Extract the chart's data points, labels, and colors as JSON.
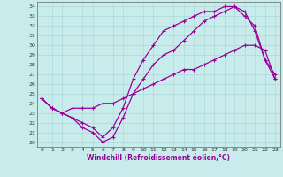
{
  "xlabel": "Windchill (Refroidissement éolien,°C)",
  "bg_color": "#c8ecec",
  "line_color": "#990099",
  "grid_color": "#aacccc",
  "xlim": [
    -0.5,
    23.5
  ],
  "ylim": [
    19.5,
    34.5
  ],
  "xticks": [
    0,
    1,
    2,
    3,
    4,
    5,
    6,
    7,
    8,
    9,
    10,
    11,
    12,
    13,
    14,
    15,
    16,
    17,
    18,
    19,
    20,
    21,
    22,
    23
  ],
  "yticks": [
    20,
    21,
    22,
    23,
    24,
    25,
    26,
    27,
    28,
    29,
    30,
    31,
    32,
    33,
    34
  ],
  "curve1_x": [
    0,
    1,
    2,
    3,
    4,
    5,
    6,
    7,
    8,
    9,
    10,
    11,
    12,
    13,
    14,
    15,
    16,
    17,
    18,
    19,
    20,
    21,
    22,
    23
  ],
  "curve1_y": [
    24.5,
    23.5,
    23.0,
    22.5,
    21.5,
    21.0,
    20.0,
    20.5,
    22.5,
    25.0,
    26.5,
    28.0,
    29.0,
    29.5,
    30.5,
    31.5,
    32.5,
    33.0,
    33.5,
    34.0,
    33.0,
    32.0,
    28.5,
    27.0
  ],
  "curve2_x": [
    0,
    1,
    2,
    3,
    4,
    5,
    6,
    7,
    8,
    9,
    10,
    11,
    12,
    13,
    14,
    15,
    16,
    17,
    18,
    19,
    20,
    21,
    22,
    23
  ],
  "curve2_y": [
    24.5,
    23.5,
    23.0,
    22.5,
    22.0,
    21.5,
    20.5,
    21.5,
    23.5,
    26.5,
    28.5,
    30.0,
    31.5,
    32.0,
    32.5,
    33.0,
    33.5,
    33.5,
    34.0,
    34.0,
    33.5,
    31.5,
    28.5,
    26.5
  ],
  "curve3_x": [
    0,
    1,
    2,
    3,
    4,
    5,
    6,
    7,
    8,
    9,
    10,
    11,
    12,
    13,
    14,
    15,
    16,
    17,
    18,
    19,
    20,
    21,
    22,
    23
  ],
  "curve3_y": [
    24.5,
    23.5,
    23.0,
    23.5,
    23.5,
    23.5,
    24.0,
    24.0,
    24.5,
    25.0,
    25.5,
    26.0,
    26.5,
    27.0,
    27.5,
    27.5,
    28.0,
    28.5,
    29.0,
    29.5,
    30.0,
    30.0,
    29.5,
    26.5
  ]
}
